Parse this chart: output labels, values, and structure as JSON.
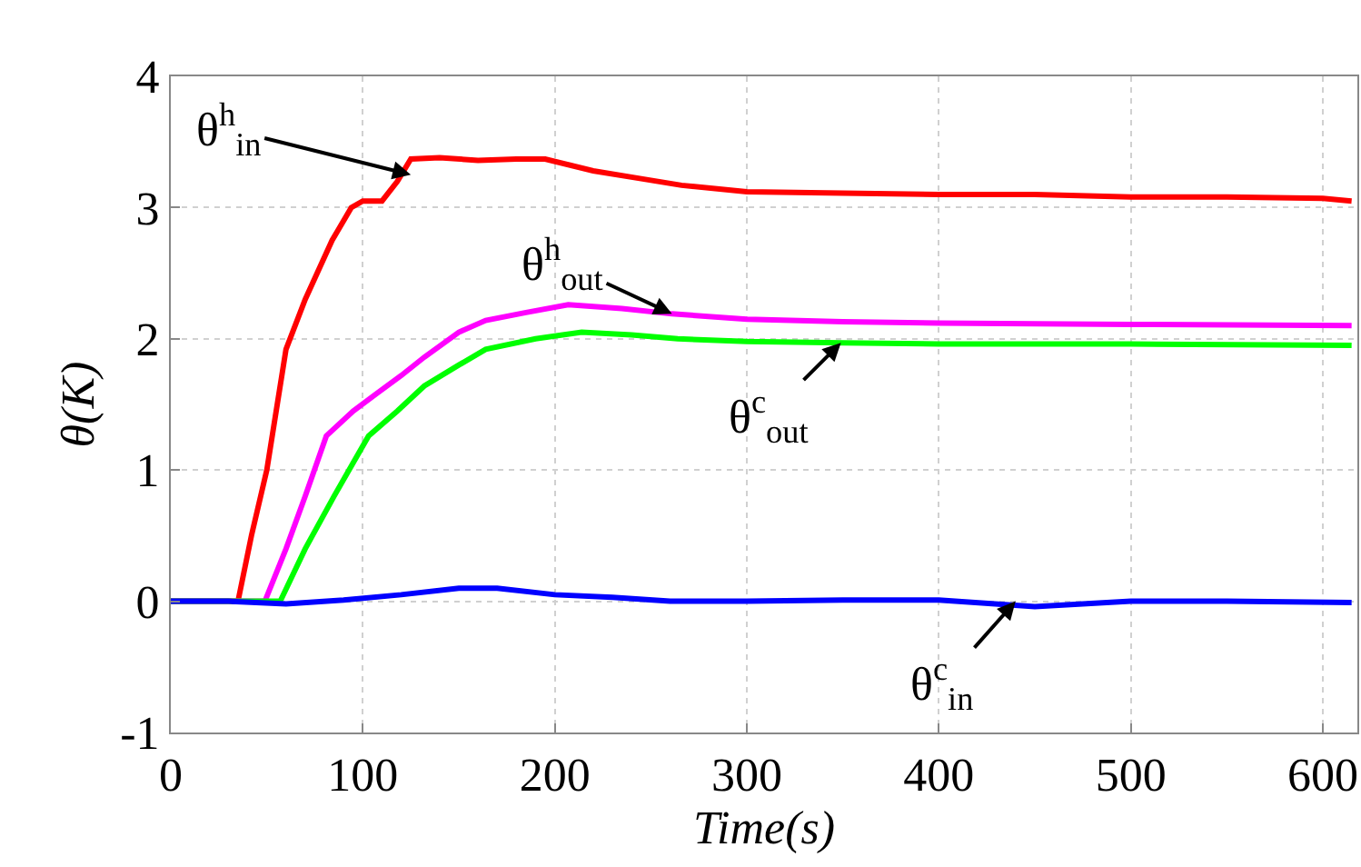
{
  "chart_data": {
    "type": "line",
    "xlabel": "Time(s)",
    "ylabel": "θ(K)",
    "xlim": [
      0,
      618
    ],
    "ylim": [
      -1,
      4
    ],
    "xticks": [
      0,
      100,
      200,
      300,
      400,
      500,
      600
    ],
    "yticks": [
      -1,
      0,
      1,
      2,
      3,
      4
    ],
    "grid": true,
    "marker": "none",
    "line_style": "solid",
    "series": [
      {
        "color": "#ff0000",
        "x": [
          0,
          35,
          42,
          50,
          60,
          70,
          84,
          94,
          100,
          110,
          118,
          125,
          140,
          160,
          180,
          195,
          220,
          245,
          266,
          300,
          350,
          400,
          450,
          500,
          550,
          600,
          615
        ],
        "values": [
          0,
          0,
          0.5,
          1.0,
          1.92,
          2.3,
          2.75,
          3.0,
          3.05,
          3.05,
          3.2,
          3.37,
          3.38,
          3.36,
          3.37,
          3.37,
          3.28,
          3.22,
          3.17,
          3.12,
          3.11,
          3.1,
          3.1,
          3.08,
          3.08,
          3.07,
          3.05
        ]
      },
      {
        "color": "#ff00ff",
        "x": [
          0,
          49,
          60,
          70,
          81,
          95,
          107,
          120,
          132,
          150,
          164,
          185,
          207,
          235,
          261,
          300,
          350,
          400,
          500,
          615
        ],
        "values": [
          0,
          0,
          0.4,
          0.8,
          1.26,
          1.45,
          1.58,
          1.72,
          1.86,
          2.05,
          2.14,
          2.2,
          2.26,
          2.23,
          2.19,
          2.15,
          2.13,
          2.12,
          2.11,
          2.1
        ]
      },
      {
        "color": "#00ff00",
        "x": [
          0,
          57,
          70,
          85,
          103,
          118,
          132,
          150,
          164,
          190,
          214,
          240,
          264,
          300,
          350,
          400,
          500,
          615
        ],
        "values": [
          0,
          0,
          0.4,
          0.8,
          1.26,
          1.45,
          1.64,
          1.8,
          1.92,
          2.0,
          2.05,
          2.03,
          2.0,
          1.98,
          1.97,
          1.96,
          1.96,
          1.95
        ]
      },
      {
        "color": "#0000ff",
        "x": [
          0,
          30,
          60,
          90,
          120,
          150,
          170,
          200,
          230,
          260,
          300,
          350,
          400,
          450,
          500,
          550,
          615
        ],
        "values": [
          0,
          0,
          -0.02,
          0.01,
          0.05,
          0.1,
          0.1,
          0.05,
          0.03,
          0.0,
          0.0,
          0.01,
          0.01,
          -0.04,
          0.0,
          0.0,
          -0.01
        ]
      }
    ],
    "annotations": [
      {
        "text": "θ$^{h}$$_{in}$",
        "x": 125,
        "y": 3.25
      },
      {
        "text": "θ$^{h}$$_{out}$",
        "x": 261,
        "y": 2.19
      },
      {
        "text": "θ$^{c}$$_{out}$",
        "x": 349,
        "y": 1.97
      },
      {
        "text": "θ$^{c}$$_{in}$",
        "x": 440,
        "y": 0.0
      }
    ]
  }
}
